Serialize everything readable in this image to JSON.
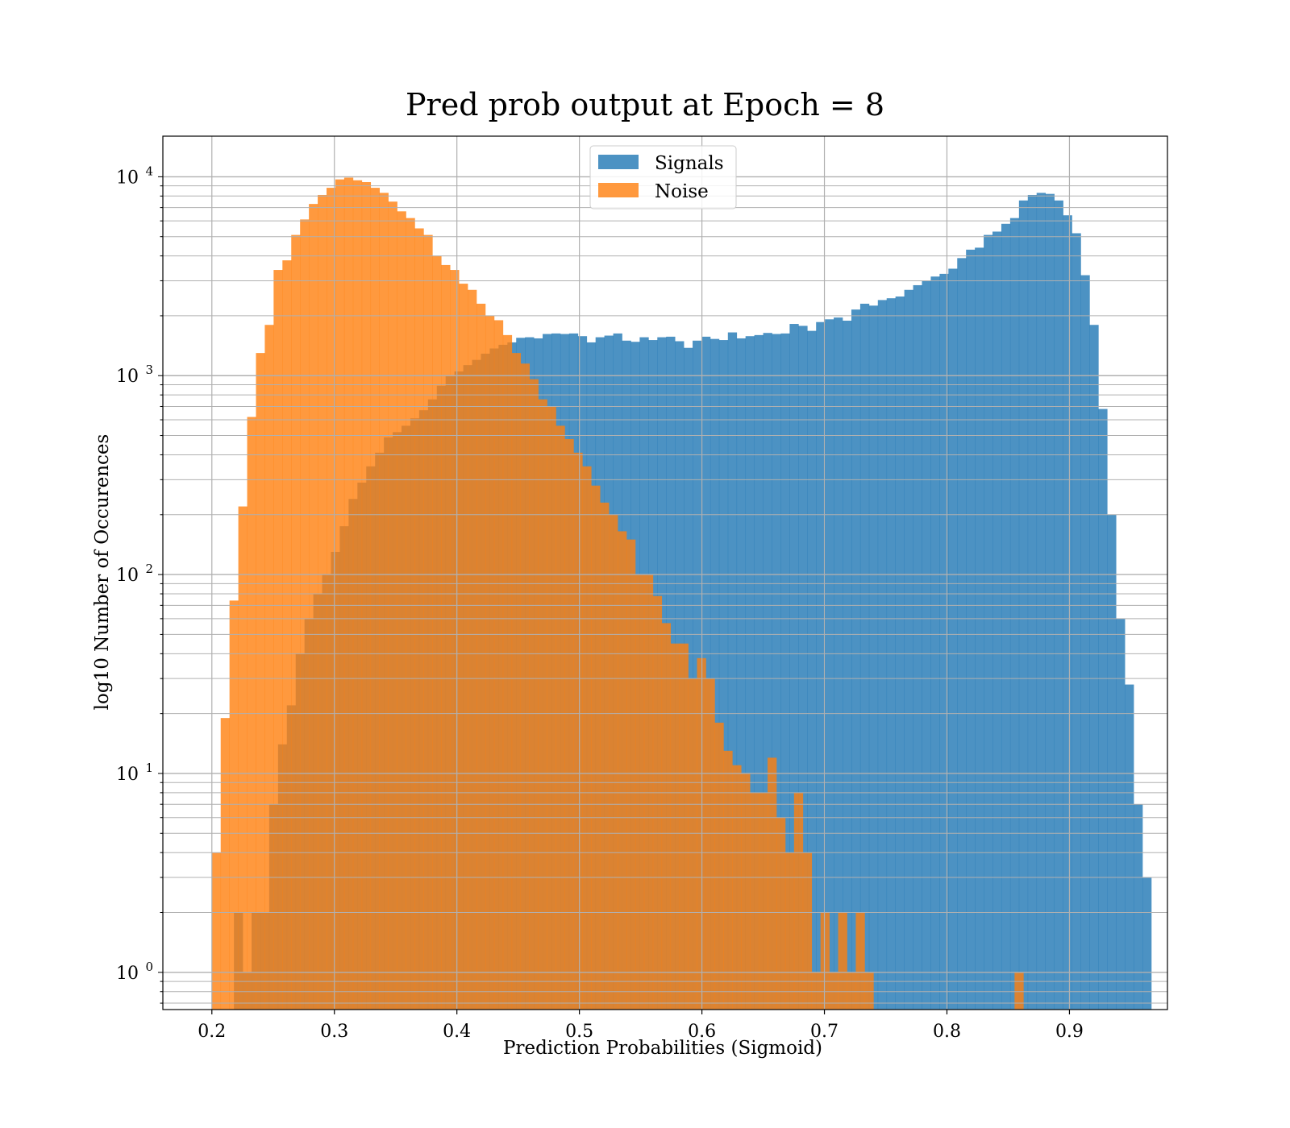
{
  "chart_data": {
    "type": "histogram",
    "title": "Pred prob output at Epoch = 8",
    "xlabel": "Prediction Probabilities (Sigmoid)",
    "ylabel": "log10 Number of Occurences",
    "xlim": [
      0.16,
      0.98
    ],
    "ylim": [
      0.65,
      16000
    ],
    "yscale": "log",
    "grid": true,
    "legend_position": "upper center",
    "x_ticks": [
      0.2,
      0.3,
      0.4,
      0.5,
      0.6,
      0.7,
      0.8,
      0.9
    ],
    "x_tick_labels": [
      "0.2",
      "0.3",
      "0.4",
      "0.5",
      "0.6",
      "0.7",
      "0.8",
      "0.9"
    ],
    "y_ticks": [
      {
        "value": 1,
        "base": "10",
        "exp": "0"
      },
      {
        "value": 10,
        "base": "10",
        "exp": "1"
      },
      {
        "value": 100,
        "base": "10",
        "exp": "2"
      },
      {
        "value": 1000,
        "base": "10",
        "exp": "3"
      },
      {
        "value": 10000,
        "base": "10",
        "exp": "4"
      }
    ],
    "series": [
      {
        "name": "Signals",
        "color": "#1f77b4",
        "opacity": 0.8,
        "bin_start": 0.218,
        "bin_width": 0.0072,
        "values": [
          2,
          1,
          2,
          2,
          7,
          14,
          22,
          40,
          60,
          80,
          100,
          130,
          175,
          240,
          290,
          350,
          410,
          490,
          520,
          560,
          610,
          670,
          760,
          890,
          1000,
          1050,
          1130,
          1200,
          1290,
          1370,
          1430,
          1470,
          1550,
          1560,
          1540,
          1620,
          1630,
          1620,
          1630,
          1580,
          1470,
          1560,
          1590,
          1630,
          1500,
          1480,
          1560,
          1510,
          1560,
          1570,
          1490,
          1380,
          1500,
          1570,
          1530,
          1510,
          1650,
          1540,
          1580,
          1600,
          1640,
          1620,
          1630,
          1820,
          1780,
          1680,
          1860,
          1920,
          1960,
          1890,
          2150,
          2300,
          2250,
          2400,
          2450,
          2500,
          2700,
          2850,
          3000,
          3150,
          3250,
          3450,
          3900,
          4300,
          4400,
          5100,
          5300,
          5800,
          6200,
          7600,
          8100,
          8300,
          8200,
          7600,
          6400,
          5200,
          3200,
          1800,
          680,
          200,
          60,
          28,
          7,
          3
        ]
      },
      {
        "name": "Noise",
        "color": "#ff7f0e",
        "opacity": 0.8,
        "bin_start": 0.2,
        "bin_width": 0.0072,
        "values": [
          4,
          19,
          74,
          220,
          620,
          1300,
          1800,
          3400,
          3800,
          5100,
          6100,
          7300,
          8100,
          8800,
          9700,
          9900,
          9600,
          9400,
          8800,
          8300,
          7500,
          6700,
          6200,
          5500,
          5100,
          4000,
          3600,
          3400,
          2900,
          2700,
          2300,
          2000,
          1900,
          1600,
          1300,
          1150,
          960,
          760,
          700,
          560,
          480,
          410,
          350,
          280,
          230,
          200,
          165,
          150,
          100,
          100,
          78,
          57,
          45,
          45,
          30,
          38,
          30,
          18,
          13,
          11,
          10,
          8,
          8,
          12,
          6,
          4,
          8,
          4,
          1,
          2,
          1,
          2,
          1,
          2,
          1,
          0,
          0,
          0,
          0,
          0,
          0,
          0,
          0,
          0,
          0,
          0,
          0,
          0,
          0,
          0,
          0,
          1
        ]
      }
    ]
  }
}
